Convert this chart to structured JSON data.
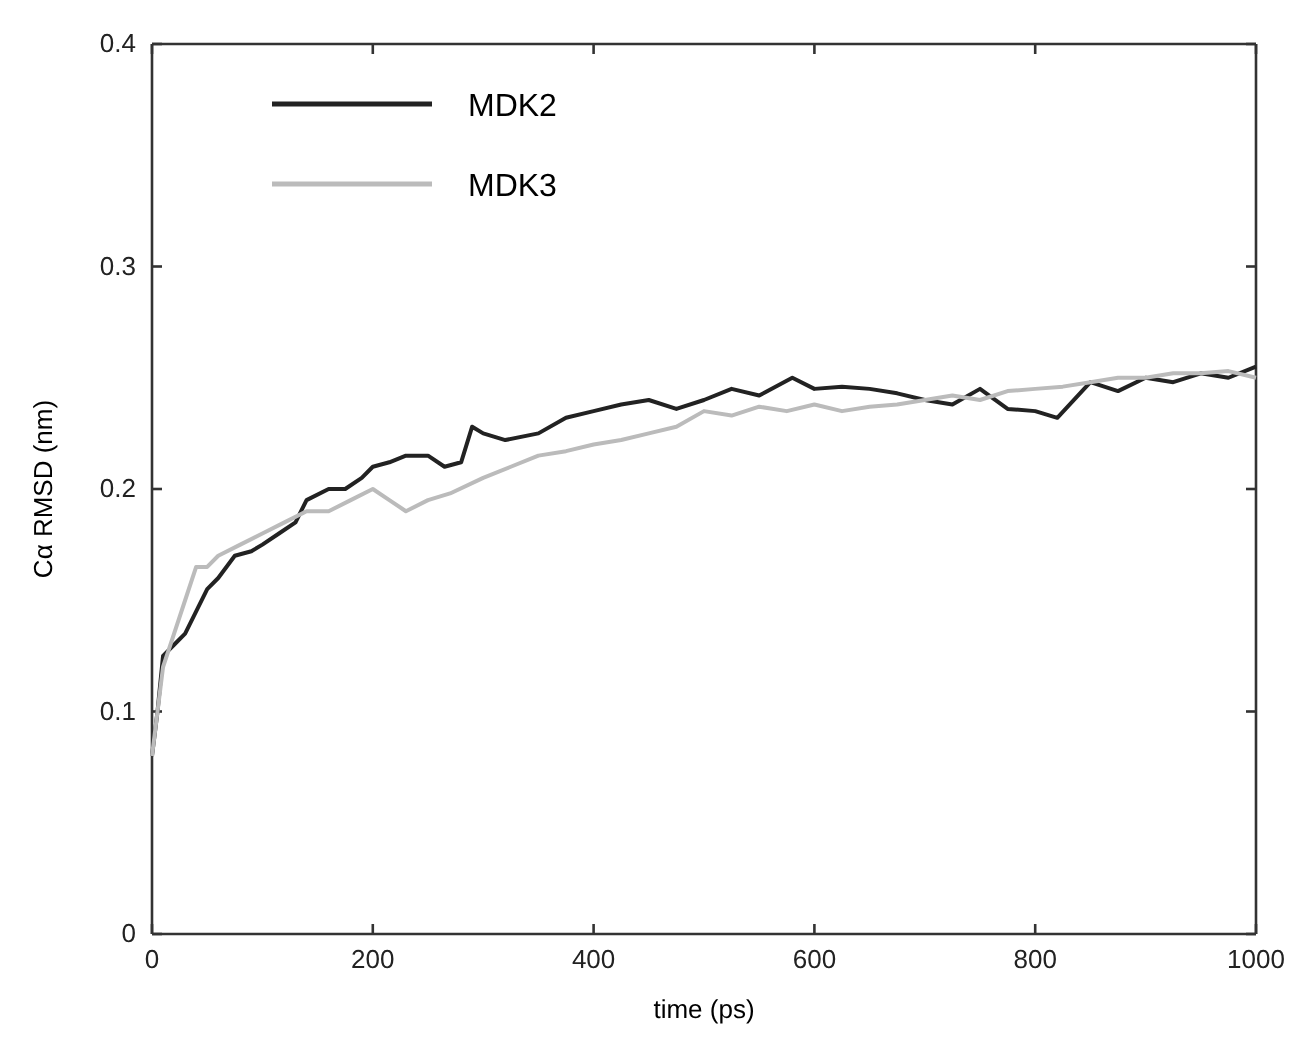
{
  "chart_data": {
    "type": "line",
    "xlabel": "time (ps)",
    "ylabel": "Cα RMSD (nm)",
    "xlim": [
      0,
      1000
    ],
    "ylim": [
      0,
      0.4
    ],
    "xticks": [
      0,
      200,
      400,
      600,
      800,
      1000
    ],
    "yticks": [
      0,
      0.1,
      0.2,
      0.3,
      0.4
    ],
    "legend": "top left",
    "grid": false,
    "marker": "none",
    "line_style": "solid",
    "series": [
      {
        "name": "MDK2",
        "color": "#222222",
        "x": [
          0,
          5,
          10,
          20,
          30,
          40,
          50,
          60,
          75,
          90,
          100,
          115,
          130,
          140,
          160,
          175,
          190,
          200,
          215,
          230,
          250,
          265,
          280,
          290,
          300,
          320,
          350,
          375,
          400,
          425,
          450,
          475,
          500,
          525,
          550,
          580,
          600,
          625,
          650,
          675,
          700,
          725,
          750,
          775,
          800,
          820,
          850,
          875,
          900,
          925,
          950,
          975,
          1000
        ],
        "values": [
          0.08,
          0.1,
          0.125,
          0.13,
          0.135,
          0.145,
          0.155,
          0.16,
          0.17,
          0.172,
          0.175,
          0.18,
          0.185,
          0.195,
          0.2,
          0.2,
          0.205,
          0.21,
          0.212,
          0.215,
          0.215,
          0.21,
          0.212,
          0.228,
          0.225,
          0.222,
          0.225,
          0.232,
          0.235,
          0.238,
          0.24,
          0.236,
          0.24,
          0.245,
          0.242,
          0.25,
          0.245,
          0.246,
          0.245,
          0.243,
          0.24,
          0.238,
          0.245,
          0.236,
          0.235,
          0.232,
          0.248,
          0.244,
          0.25,
          0.248,
          0.252,
          0.25,
          0.255
        ]
      },
      {
        "name": "MDK3",
        "color": "#bbbbbb",
        "x": [
          0,
          5,
          10,
          20,
          30,
          40,
          50,
          60,
          80,
          100,
          120,
          140,
          160,
          180,
          200,
          215,
          230,
          250,
          270,
          300,
          325,
          350,
          375,
          400,
          425,
          450,
          475,
          500,
          525,
          550,
          575,
          600,
          625,
          650,
          675,
          700,
          725,
          750,
          775,
          800,
          825,
          850,
          875,
          900,
          925,
          950,
          975,
          1000
        ],
        "values": [
          0.08,
          0.1,
          0.12,
          0.135,
          0.15,
          0.165,
          0.165,
          0.17,
          0.175,
          0.18,
          0.185,
          0.19,
          0.19,
          0.195,
          0.2,
          0.195,
          0.19,
          0.195,
          0.198,
          0.205,
          0.21,
          0.215,
          0.217,
          0.22,
          0.222,
          0.225,
          0.228,
          0.235,
          0.233,
          0.237,
          0.235,
          0.238,
          0.235,
          0.237,
          0.238,
          0.24,
          0.242,
          0.24,
          0.244,
          0.245,
          0.246,
          0.248,
          0.25,
          0.25,
          0.252,
          0.252,
          0.253,
          0.25
        ]
      }
    ]
  }
}
